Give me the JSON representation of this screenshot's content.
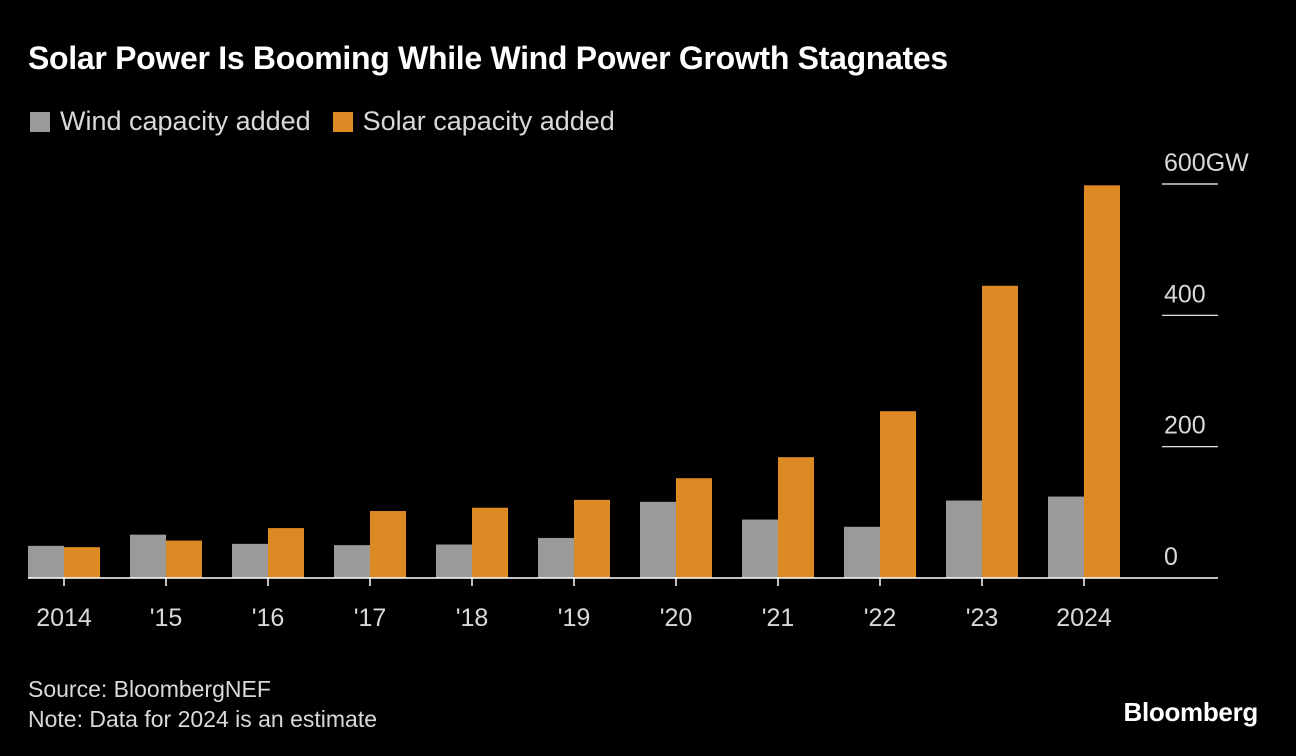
{
  "header": {
    "title": "Solar Power Is Booming While Wind Power Growth Stagnates"
  },
  "legend": [
    {
      "label": "Wind capacity added",
      "color": "#9a9a9a"
    },
    {
      "label": "Solar capacity added",
      "color": "#dd8a25"
    }
  ],
  "chart_data": {
    "type": "bar",
    "categories": [
      "2014",
      "'15",
      "'16",
      "'17",
      "'18",
      "'19",
      "'20",
      "'21",
      "'22",
      "'23",
      "2024"
    ],
    "series": [
      {
        "name": "Wind capacity added",
        "color": "#9a9a9a",
        "values": [
          49,
          66,
          52,
          50,
          51,
          61,
          116,
          89,
          78,
          118,
          124
        ]
      },
      {
        "name": "Solar capacity added",
        "color": "#dd8a25",
        "values": [
          47,
          57,
          76,
          102,
          107,
          119,
          152,
          184,
          254,
          445,
          598
        ]
      }
    ],
    "ylim": [
      0,
      600
    ],
    "yticks": [
      0,
      200,
      400,
      600
    ],
    "ytick_labels": [
      "0",
      "200",
      "400",
      "600GW"
    ],
    "ylabel": "GW",
    "grid": false,
    "legend_position": "top-left"
  },
  "footer": {
    "source": "Source: BloombergNEF",
    "note": "Note: Data for 2024 is an estimate"
  },
  "brand": {
    "name": "Bloomberg"
  }
}
